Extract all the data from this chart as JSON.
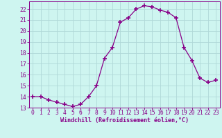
{
  "x": [
    0,
    1,
    2,
    3,
    4,
    5,
    6,
    7,
    8,
    9,
    10,
    11,
    12,
    13,
    14,
    15,
    16,
    17,
    18,
    19,
    20,
    21,
    22,
    23
  ],
  "y": [
    14.0,
    14.0,
    13.7,
    13.5,
    13.3,
    13.1,
    13.3,
    14.0,
    15.0,
    17.5,
    18.5,
    20.8,
    21.2,
    22.0,
    22.3,
    22.2,
    21.9,
    21.7,
    21.2,
    18.5,
    17.3,
    15.7,
    15.3,
    15.5
  ],
  "line_color": "#880088",
  "marker": "+",
  "marker_size": 4,
  "marker_lw": 1.2,
  "bg_color": "#cef5f0",
  "grid_color": "#b0d8d8",
  "xlabel": "Windchill (Refroidissement éolien,°C)",
  "tick_color": "#880088",
  "ylim": [
    13,
    22.7
  ],
  "xlim": [
    -0.5,
    23.5
  ],
  "yticks": [
    13,
    14,
    15,
    16,
    17,
    18,
    19,
    20,
    21,
    22
  ],
  "xticks": [
    0,
    1,
    2,
    3,
    4,
    5,
    6,
    7,
    8,
    9,
    10,
    11,
    12,
    13,
    14,
    15,
    16,
    17,
    18,
    19,
    20,
    21,
    22,
    23
  ],
  "spine_color": "#880088",
  "font_size_axis": 6.0,
  "font_size_tick": 5.8
}
